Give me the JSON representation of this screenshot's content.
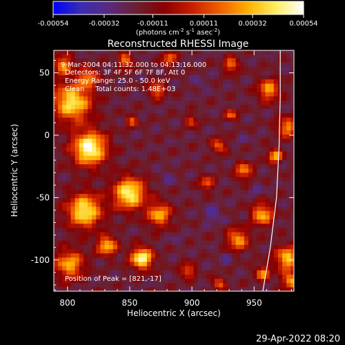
{
  "footer": {
    "timestamp": "29-Apr-2022 08:20"
  },
  "colorbar": {
    "ticks": [
      "-0.00054",
      "-0.00032",
      "-0.00011",
      "0.00011",
      "0.00032",
      "0.00054"
    ],
    "values": [
      -0.00054,
      -0.00032,
      -0.00011,
      0.00011,
      0.00032,
      0.00054
    ],
    "units": "(photons cm",
    "units_exp1": "-2",
    "units_mid": " s",
    "units_exp2": "-1",
    "units_end": " asec",
    "units_exp3": "-2",
    "units_close": ")",
    "stops": [
      "#0000ff",
      "#3a2db0",
      "#5a2a80",
      "#6a2030",
      "#8a0000",
      "#c81e00",
      "#f06000",
      "#ffb000",
      "#ffee60",
      "#ffffff"
    ]
  },
  "chart_data": {
    "type": "heatmap",
    "title": "Reconstructed RHESSI Image",
    "xlabel": "Heliocentric X (arcsec)",
    "ylabel": "Heliocentric Y (arcsec)",
    "xlim": [
      789,
      982
    ],
    "ylim": [
      -125,
      68
    ],
    "xticks": [
      800,
      850,
      900,
      950
    ],
    "yticks": [
      50,
      0,
      -50,
      -100
    ],
    "annotations": [
      "9-Mar-2004 04:11:32.000 to 04:13:16.000",
      "Detectors: 3F 4F 5F 6F 7F 8F, Att 0",
      "Energy Range: 25.0 - 50.0 keV",
      "Clean     Total counts: 1.48E+03"
    ],
    "peak_label": "Position of Peak = [821,-17]",
    "peak_position": [
      821,
      -17
    ],
    "limb_arc": [
      [
        957,
        -125
      ],
      [
        963,
        -90
      ],
      [
        968,
        -50
      ],
      [
        970,
        -10
      ],
      [
        971,
        30
      ],
      [
        971,
        68
      ]
    ],
    "hotspots": [
      {
        "x": 816,
        "y": -12,
        "r": 14,
        "v": 0.00054
      },
      {
        "x": 802,
        "y": 25,
        "r": 16,
        "v": 0.00042
      },
      {
        "x": 795,
        "y": 55,
        "r": 8,
        "v": 0.00025
      },
      {
        "x": 812,
        "y": -62,
        "r": 14,
        "v": 0.00045
      },
      {
        "x": 848,
        "y": -48,
        "r": 13,
        "v": 0.00048
      },
      {
        "x": 858,
        "y": -100,
        "r": 9,
        "v": 0.0005
      },
      {
        "x": 830,
        "y": -90,
        "r": 8,
        "v": 0.00035
      },
      {
        "x": 872,
        "y": -65,
        "r": 10,
        "v": 0.0003
      },
      {
        "x": 800,
        "y": -105,
        "r": 12,
        "v": 0.0003
      },
      {
        "x": 815,
        "y": 45,
        "r": 8,
        "v": 0.00022
      },
      {
        "x": 845,
        "y": 58,
        "r": 6,
        "v": 0.00025
      },
      {
        "x": 870,
        "y": 35,
        "r": 7,
        "v": 0.00022
      },
      {
        "x": 880,
        "y": 60,
        "r": 6,
        "v": 0.0002
      },
      {
        "x": 930,
        "y": 55,
        "r": 6,
        "v": 0.00025
      },
      {
        "x": 960,
        "y": 35,
        "r": 9,
        "v": 0.00028
      },
      {
        "x": 975,
        "y": 5,
        "r": 8,
        "v": 0.00026
      },
      {
        "x": 965,
        "y": -18,
        "r": 6,
        "v": 0.0003
      },
      {
        "x": 955,
        "y": -65,
        "r": 9,
        "v": 0.00032
      },
      {
        "x": 935,
        "y": -85,
        "r": 9,
        "v": 0.00028
      },
      {
        "x": 975,
        "y": -100,
        "r": 10,
        "v": 0.00035
      },
      {
        "x": 978,
        "y": -118,
        "r": 7,
        "v": 0.0003
      },
      {
        "x": 955,
        "y": -112,
        "r": 6,
        "v": 0.00025
      },
      {
        "x": 920,
        "y": -10,
        "r": 6,
        "v": 0.0002
      },
      {
        "x": 910,
        "y": -40,
        "r": 6,
        "v": 0.00018
      },
      {
        "x": 940,
        "y": -30,
        "r": 7,
        "v": 0.00024
      },
      {
        "x": 895,
        "y": -110,
        "r": 6,
        "v": 0.0002
      },
      {
        "x": 930,
        "y": 15,
        "r": 5,
        "v": 0.00018
      },
      {
        "x": 898,
        "y": 10,
        "r": 5,
        "v": 0.00015
      },
      {
        "x": 850,
        "y": 10,
        "r": 5,
        "v": 0.00015
      },
      {
        "x": 920,
        "y": -120,
        "r": 5,
        "v": 0.0002
      },
      {
        "x": 915,
        "y": -65,
        "r": -7,
        "v": -0.00035
      },
      {
        "x": 878,
        "y": -35,
        "r": -6,
        "v": -0.0003
      },
      {
        "x": 950,
        "y": -45,
        "r": -5,
        "v": -0.0003
      },
      {
        "x": 905,
        "y": 40,
        "r": -6,
        "v": -0.00028
      },
      {
        "x": 940,
        "y": -5,
        "r": -5,
        "v": -0.00025
      },
      {
        "x": 885,
        "y": -85,
        "r": -5,
        "v": -0.00025
      },
      {
        "x": 860,
        "y": 30,
        "r": -5,
        "v": -0.00022
      },
      {
        "x": 925,
        "y": -100,
        "r": -6,
        "v": -0.00028
      }
    ]
  }
}
